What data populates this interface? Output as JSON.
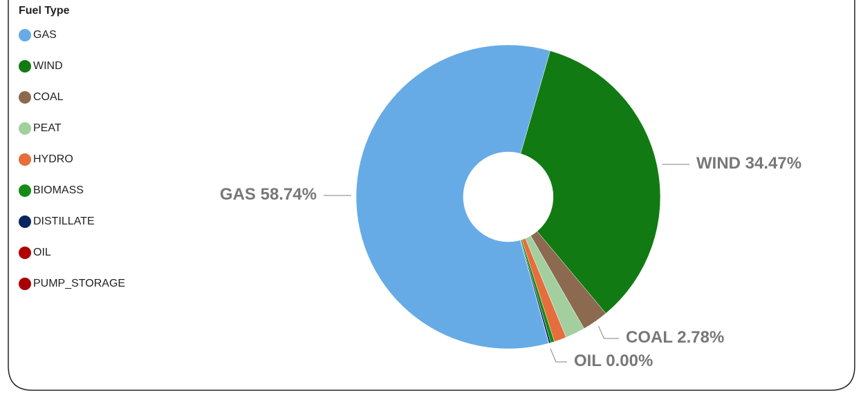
{
  "chart_data": {
    "type": "pie",
    "legend_title": "Fuel Type",
    "categories": [
      "GAS",
      "WIND",
      "COAL",
      "PEAT",
      "HYDRO",
      "BIOMASS",
      "DISTILLATE",
      "OIL",
      "PUMP_STORAGE"
    ],
    "values": [
      58.74,
      34.47,
      2.78,
      2.1,
      1.3,
      0.4,
      0.2,
      0.0,
      0.01
    ],
    "value_labels": [
      "58.74%",
      "34.47%",
      "2.78%",
      null,
      null,
      null,
      null,
      "0.00%",
      null
    ],
    "colors": [
      "#66abe6",
      "#127a12",
      "#8b6a50",
      "#a3cf9f",
      "#e66d3c",
      "#158c15",
      "#0a2560",
      "#b00000",
      "#a80000"
    ],
    "donut": true
  }
}
